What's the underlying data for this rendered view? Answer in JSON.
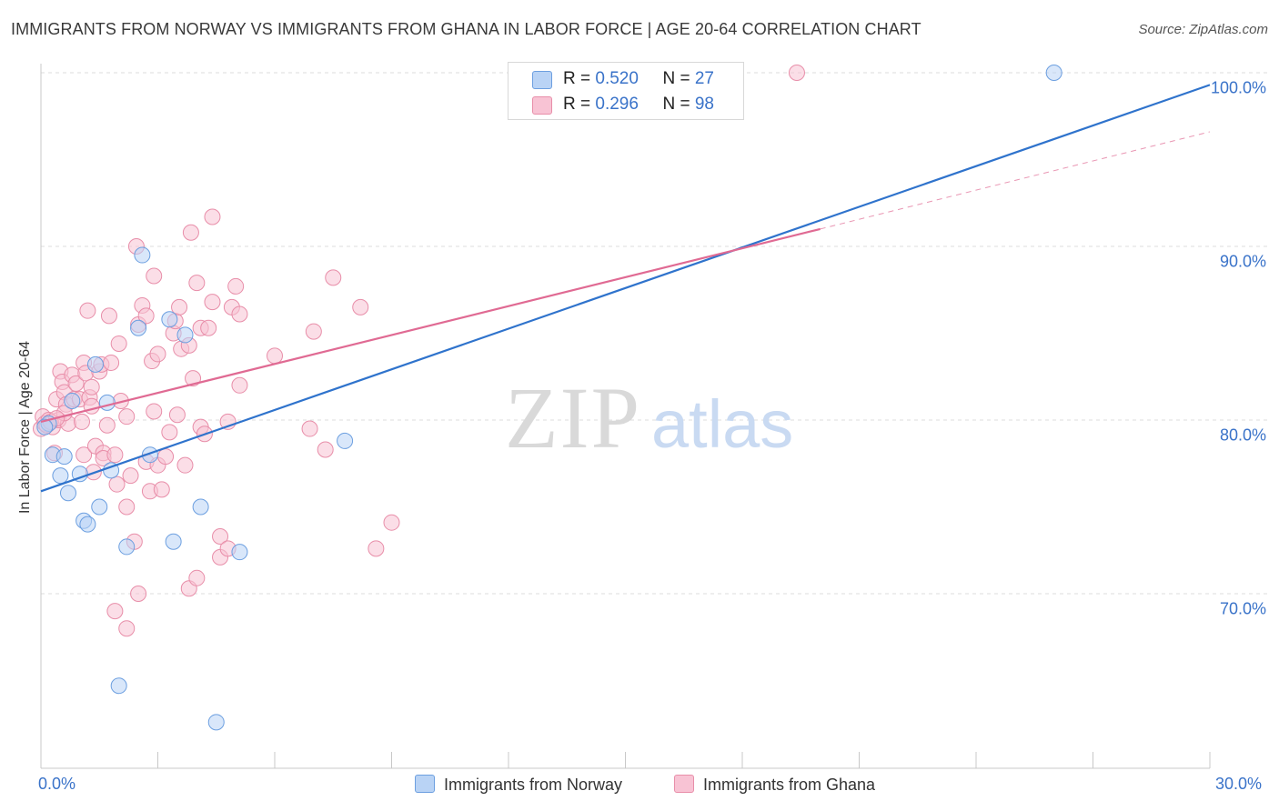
{
  "title": "IMMIGRANTS FROM NORWAY VS IMMIGRANTS FROM GHANA IN LABOR FORCE | AGE 20-64 CORRELATION CHART",
  "source": "Source: ZipAtlas.com",
  "watermark": {
    "zip": "ZIP",
    "atlas": "atlas"
  },
  "legend": {
    "norway": {
      "r_label": "R = ",
      "r_value": "0.520",
      "n_label": "N = ",
      "n_value": "27"
    },
    "ghana": {
      "r_label": "R = ",
      "r_value": "0.296",
      "n_label": "N = ",
      "n_value": "98"
    }
  },
  "colors": {
    "norway_fill": "#b9d3f5",
    "norway_stroke": "#6c9fe0",
    "norway_line": "#2f73cc",
    "ghana_fill": "#f8c3d4",
    "ghana_stroke": "#e88ea9",
    "ghana_line": "#e06a93",
    "tick_text": "#3a73c9",
    "grid": "#dcdcdc"
  },
  "chart_data": {
    "type": "scatter",
    "title": "IMMIGRANTS FROM NORWAY VS IMMIGRANTS FROM GHANA IN LABOR FORCE | AGE 20-64 CORRELATION CHART",
    "xlabel": "",
    "ylabel": "In Labor Force | Age 20-64",
    "xlim": [
      0,
      30
    ],
    "ylim": [
      61,
      101.5
    ],
    "x_tick_labels": [
      "0.0%",
      "30.0%"
    ],
    "y_ticks": [
      70,
      80,
      90,
      100
    ],
    "y_tick_labels": [
      "70.0%",
      "80.0%",
      "90.0%",
      "100.0%"
    ],
    "grid": true,
    "legend_position": "top-center",
    "series": [
      {
        "name": "Immigrants from Norway",
        "r": 0.52,
        "n": 27,
        "trend": {
          "x": [
            0,
            30
          ],
          "y": [
            75.9,
            99.3
          ]
        },
        "points": [
          [
            0.2,
            79.8
          ],
          [
            0.3,
            78.0
          ],
          [
            0.5,
            76.8
          ],
          [
            0.6,
            77.9
          ],
          [
            0.7,
            75.8
          ],
          [
            0.8,
            81.1
          ],
          [
            1.0,
            76.9
          ],
          [
            1.1,
            74.2
          ],
          [
            1.2,
            74.0
          ],
          [
            1.4,
            83.2
          ],
          [
            1.5,
            75.0
          ],
          [
            1.7,
            81.0
          ],
          [
            1.8,
            77.1
          ],
          [
            2.2,
            72.7
          ],
          [
            2.5,
            85.3
          ],
          [
            2.6,
            89.5
          ],
          [
            2.8,
            78.0
          ],
          [
            3.3,
            85.8
          ],
          [
            3.4,
            73.0
          ],
          [
            3.7,
            84.9
          ],
          [
            4.1,
            75.0
          ],
          [
            5.1,
            72.4
          ],
          [
            7.8,
            78.8
          ],
          [
            26.0,
            100.0
          ],
          [
            2.0,
            64.7
          ],
          [
            4.5,
            62.6
          ],
          [
            0.1,
            79.6
          ]
        ]
      },
      {
        "name": "Immigrants from Ghana",
        "r": 0.296,
        "n": 98,
        "trend": {
          "x": [
            0,
            20.0
          ],
          "y": [
            79.9,
            91.0
          ]
        },
        "trend_extension": {
          "x": [
            20.0,
            30
          ],
          "y": [
            91.0,
            96.6
          ]
        },
        "points": [
          [
            0.0,
            79.5
          ],
          [
            0.05,
            80.2
          ],
          [
            0.1,
            79.8
          ],
          [
            0.2,
            80.0
          ],
          [
            0.3,
            79.6
          ],
          [
            0.35,
            78.1
          ],
          [
            0.4,
            81.2
          ],
          [
            0.45,
            80.0
          ],
          [
            0.5,
            82.8
          ],
          [
            0.55,
            82.2
          ],
          [
            0.6,
            81.6
          ],
          [
            0.65,
            80.9
          ],
          [
            0.7,
            79.8
          ],
          [
            0.8,
            82.6
          ],
          [
            0.85,
            81.2
          ],
          [
            0.9,
            82.1
          ],
          [
            1.0,
            81.2
          ],
          [
            1.05,
            79.9
          ],
          [
            1.1,
            78.0
          ],
          [
            1.1,
            83.3
          ],
          [
            1.15,
            82.7
          ],
          [
            1.2,
            86.3
          ],
          [
            1.25,
            81.3
          ],
          [
            1.3,
            81.9
          ],
          [
            1.35,
            77.0
          ],
          [
            1.4,
            78.5
          ],
          [
            1.5,
            82.8
          ],
          [
            1.55,
            83.2
          ],
          [
            1.6,
            78.1
          ],
          [
            1.6,
            77.8
          ],
          [
            1.7,
            79.7
          ],
          [
            1.75,
            86.0
          ],
          [
            1.8,
            83.3
          ],
          [
            1.9,
            78.0
          ],
          [
            1.95,
            76.3
          ],
          [
            2.0,
            84.4
          ],
          [
            2.05,
            81.1
          ],
          [
            2.2,
            75.0
          ],
          [
            2.2,
            80.2
          ],
          [
            2.3,
            76.8
          ],
          [
            2.4,
            73.0
          ],
          [
            2.45,
            90.0
          ],
          [
            2.5,
            85.5
          ],
          [
            2.6,
            86.6
          ],
          [
            2.7,
            86.0
          ],
          [
            2.7,
            77.6
          ],
          [
            2.8,
            75.9
          ],
          [
            2.85,
            83.4
          ],
          [
            2.9,
            88.3
          ],
          [
            3.0,
            83.8
          ],
          [
            3.0,
            77.4
          ],
          [
            3.1,
            76.0
          ],
          [
            3.2,
            77.9
          ],
          [
            3.3,
            79.3
          ],
          [
            3.4,
            85.0
          ],
          [
            3.45,
            85.7
          ],
          [
            3.5,
            80.3
          ],
          [
            3.55,
            86.5
          ],
          [
            3.6,
            84.1
          ],
          [
            3.7,
            77.4
          ],
          [
            3.8,
            84.3
          ],
          [
            3.85,
            90.8
          ],
          [
            3.9,
            82.4
          ],
          [
            4.0,
            87.9
          ],
          [
            4.1,
            85.3
          ],
          [
            4.1,
            79.6
          ],
          [
            4.2,
            79.2
          ],
          [
            4.3,
            85.3
          ],
          [
            4.4,
            86.8
          ],
          [
            4.4,
            91.7
          ],
          [
            4.6,
            73.3
          ],
          [
            4.6,
            72.1
          ],
          [
            4.8,
            72.6
          ],
          [
            4.8,
            79.9
          ],
          [
            4.9,
            86.5
          ],
          [
            5.0,
            87.7
          ],
          [
            5.1,
            86.1
          ],
          [
            5.1,
            82.0
          ],
          [
            6.0,
            83.7
          ],
          [
            6.9,
            79.5
          ],
          [
            7.0,
            85.1
          ],
          [
            7.3,
            78.3
          ],
          [
            7.5,
            88.2
          ],
          [
            8.2,
            86.5
          ],
          [
            8.6,
            72.6
          ],
          [
            9.0,
            74.1
          ],
          [
            19.4,
            100.0
          ],
          [
            1.9,
            69.0
          ],
          [
            2.2,
            68.0
          ],
          [
            3.8,
            70.3
          ],
          [
            4.0,
            70.9
          ],
          [
            2.5,
            70.0
          ],
          [
            0.15,
            79.7
          ],
          [
            0.25,
            79.9
          ],
          [
            0.6,
            80.4
          ],
          [
            1.3,
            80.8
          ],
          [
            2.9,
            80.5
          ],
          [
            0.4,
            80.1
          ]
        ]
      }
    ]
  },
  "bottom_legend": {
    "norway": "Immigrants from Norway",
    "ghana": "Immigrants from Ghana"
  }
}
